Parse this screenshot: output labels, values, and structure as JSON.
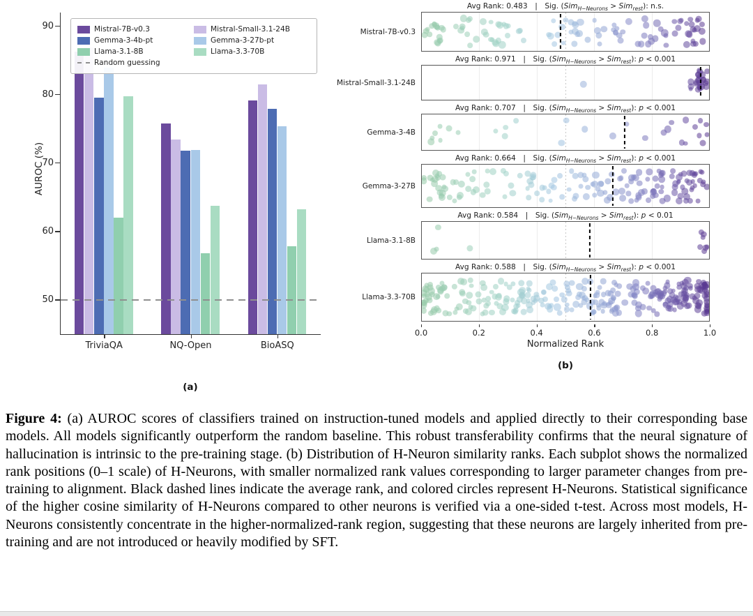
{
  "figure": {
    "panel_a_label": "(a)",
    "panel_b_label": "(b)"
  },
  "caption": {
    "lead": "Figure 4:",
    "text": " (a) AUROC scores of classifiers trained on instruction-tuned models and applied directly to their corresponding base models. All models significantly outperform the random baseline. This robust transferability confirms that the neural signature of hallucination is intrinsic to the pre-training stage. (b) Distribution of H-Neuron similarity ranks. Each subplot shows the normalized rank positions (0–1 scale) of H-Neurons, with smaller normalized rank values corresponding to larger parameter changes from pre-training to alignment. Black dashed lines indicate the average rank, and colored circles represent H-Neurons. Statistical significance of the higher cosine similarity of H-Neurons compared to other neurons is verified via a one-sided t-test. Across most models, H-Neurons consistently concentrate in the higher-normalized-rank region, suggesting that these neurons are largely inherited from pre-training and are not introduced or heavily modified by SFT."
  },
  "chart_data": [
    {
      "type": "bar",
      "ylabel": "AUROC (%)",
      "ylim": [
        45,
        92
      ],
      "yticks": [
        90,
        80,
        70,
        60,
        50
      ],
      "categories": [
        "TriviaQA",
        "NQ-Open",
        "BioASQ"
      ],
      "series": [
        {
          "name": "Mistral-7B-v0.3",
          "color": "#6b4a9d",
          "values": [
            86.3,
            75.8,
            79.2
          ]
        },
        {
          "name": "Mistral-Small-3.1-24B",
          "color": "#cabce5",
          "values": [
            86.9,
            73.4,
            81.5
          ]
        },
        {
          "name": "Gemma-3-4b-pt",
          "color": "#4d6cb3",
          "values": [
            79.6,
            71.8,
            77.9
          ]
        },
        {
          "name": "Gemma-3-27b-pt",
          "color": "#a9c9e8",
          "values": [
            83.9,
            71.9,
            75.4
          ]
        },
        {
          "name": "Llama-3.1-8B",
          "color": "#90cfae",
          "values": [
            62.0,
            56.8,
            57.8
          ]
        },
        {
          "name": "Llama-3.3-70B",
          "color": "#a9dcc2",
          "values": [
            79.8,
            63.8,
            63.3
          ]
        }
      ],
      "baseline": {
        "label": "Random guessing",
        "value": 50,
        "color": "#8f8f8f"
      },
      "legend": {
        "column1": [
          0,
          2,
          4,
          "baseline"
        ],
        "column2": [
          1,
          3,
          5
        ]
      }
    },
    {
      "type": "scatter",
      "xlabel": "Normalized Rank",
      "xlim": [
        0,
        1
      ],
      "xticks": [
        "0.0",
        "0.2",
        "0.4",
        "0.6",
        "0.8",
        "1.0"
      ],
      "title_parts": {
        "avg_label": "Avg Rank:",
        "separator": "|",
        "sig_open": "Sig. (",
        "sim": "Sim",
        "sub_h": "H−Neurons",
        "gt": ">",
        "sub_rest": "rest",
        "close": "): "
      },
      "avg_line_color": "#000000",
      "dot_colormap": [
        "#96caa7",
        "#a0d2c6",
        "#a4c7e2",
        "#9498cd",
        "#8080c2",
        "#6c58a8",
        "#58368f"
      ],
      "subplots": [
        {
          "label": "Mistral-7B-v0.3",
          "avg_rank": "0.483",
          "sig": "n.s.",
          "clusters": [
            [
              0.03,
              0.025,
              10
            ],
            [
              0.1,
              0.04,
              12
            ],
            [
              0.2,
              0.05,
              12
            ],
            [
              0.32,
              0.06,
              12
            ],
            [
              0.45,
              0.05,
              10
            ],
            [
              0.57,
              0.05,
              12
            ],
            [
              0.68,
              0.04,
              10
            ],
            [
              0.78,
              0.04,
              10
            ],
            [
              0.88,
              0.04,
              12
            ],
            [
              0.965,
              0.025,
              14
            ]
          ]
        },
        {
          "label": "Mistral-Small-3.1-24B",
          "avg_rank": "0.971",
          "sig": "p < 0.001",
          "clusters": [
            [
              0.55,
              0.005,
              1
            ],
            [
              0.975,
              0.018,
              26
            ]
          ]
        },
        {
          "label": "Gemma-3-4B",
          "avg_rank": "0.707",
          "sig": "p < 0.001",
          "clusters": [
            [
              0.035,
              0.02,
              4
            ],
            [
              0.13,
              0.03,
              3
            ],
            [
              0.27,
              0.035,
              4
            ],
            [
              0.51,
              0.02,
              2
            ],
            [
              0.56,
              0.01,
              1
            ],
            [
              0.7,
              0.025,
              2
            ],
            [
              0.84,
              0.03,
              4
            ],
            [
              0.95,
              0.03,
              9
            ]
          ]
        },
        {
          "label": "Gemma-3-27B",
          "avg_rank": "0.664",
          "sig": "p < 0.001",
          "clusters": [
            [
              0.04,
              0.03,
              14
            ],
            [
              0.13,
              0.05,
              14
            ],
            [
              0.25,
              0.06,
              14
            ],
            [
              0.38,
              0.06,
              14
            ],
            [
              0.5,
              0.05,
              14
            ],
            [
              0.62,
              0.05,
              18
            ],
            [
              0.73,
              0.05,
              22
            ],
            [
              0.84,
              0.05,
              24
            ],
            [
              0.95,
              0.035,
              26
            ]
          ]
        },
        {
          "label": "Llama-3.1-8B",
          "avg_rank": "0.584",
          "sig": "p < 0.01",
          "clusters": [
            [
              0.03,
              0.018,
              3
            ],
            [
              0.13,
              0.012,
              1
            ],
            [
              0.985,
              0.012,
              7
            ]
          ]
        },
        {
          "label": "Llama-3.3-70B",
          "avg_rank": "0.588",
          "sig": "p < 0.001",
          "clusters": [
            [
              0.03,
              0.025,
              22
            ],
            [
              0.11,
              0.05,
              24
            ],
            [
              0.22,
              0.06,
              26
            ],
            [
              0.34,
              0.06,
              26
            ],
            [
              0.46,
              0.06,
              28
            ],
            [
              0.58,
              0.06,
              32
            ],
            [
              0.7,
              0.06,
              38
            ],
            [
              0.82,
              0.05,
              42
            ],
            [
              0.93,
              0.04,
              42
            ],
            [
              0.99,
              0.01,
              20
            ]
          ]
        }
      ]
    }
  ]
}
